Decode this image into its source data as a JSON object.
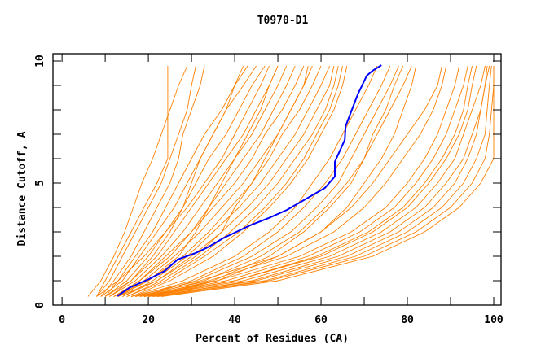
{
  "chart_data": {
    "type": "line",
    "title": "T0970-D1",
    "xlabel": "Percent of Residues (CA)",
    "ylabel": "Distance Cutoff, A",
    "xlim": [
      -2.1,
      101.7
    ],
    "ylim": [
      0,
      10.3
    ],
    "x_ticks": [
      0,
      20,
      40,
      60,
      80,
      100
    ],
    "y_ticks": [
      0,
      5,
      10
    ],
    "grid": false,
    "legend": "none",
    "colors": {
      "models": "#ff8000",
      "highlight": "#0000ff",
      "axis": "#000000"
    },
    "model_y_levels": [
      0.35,
      1,
      2,
      3,
      4,
      5,
      6,
      7,
      8,
      9,
      9.8
    ],
    "model_series_x": [
      [
        6,
        9,
        12,
        14.5,
        16.5,
        18.5,
        21,
        23,
        25,
        27,
        29
      ],
      [
        8,
        10,
        13,
        16,
        19,
        22,
        24.5,
        24.5,
        24.5,
        24.5,
        24.5
      ],
      [
        8,
        11,
        14,
        17,
        20,
        23,
        25,
        27,
        29,
        30,
        31
      ],
      [
        9,
        12,
        16,
        19,
        22,
        25,
        27,
        28,
        30,
        32,
        33
      ],
      [
        8,
        13,
        17,
        21,
        24,
        27,
        30,
        33,
        37,
        40,
        43
      ],
      [
        9,
        14,
        18,
        22,
        26,
        29,
        32,
        35,
        38,
        42,
        45
      ],
      [
        10,
        15,
        20,
        24,
        28,
        31,
        34,
        38,
        41,
        44,
        47
      ],
      [
        10,
        13,
        19,
        24,
        29,
        33,
        37,
        40,
        43,
        46,
        48
      ],
      [
        11,
        16,
        22,
        26,
        30,
        34,
        38,
        42,
        45,
        48,
        50
      ],
      [
        11,
        17,
        23,
        28,
        32,
        36,
        40,
        44,
        47,
        50,
        52
      ],
      [
        12,
        18,
        24,
        30,
        34,
        38,
        42,
        46,
        49,
        52,
        54
      ],
      [
        12,
        18,
        25,
        30,
        35,
        40,
        44,
        47,
        51,
        54,
        56
      ],
      [
        13,
        19,
        26,
        32,
        37,
        42,
        46,
        50,
        53,
        56,
        58
      ],
      [
        13,
        20,
        28,
        34,
        39,
        44,
        48,
        51,
        55,
        58,
        60
      ],
      [
        14,
        21,
        29,
        35,
        41,
        46,
        50,
        54,
        57,
        60,
        62
      ],
      [
        14,
        22,
        30,
        37,
        43,
        48,
        52,
        56,
        59,
        62,
        63
      ],
      [
        15,
        23,
        32,
        39,
        45,
        50,
        54,
        58,
        61,
        63,
        64
      ],
      [
        15,
        24,
        33,
        41,
        47,
        52,
        56,
        59,
        62,
        64,
        65
      ],
      [
        16,
        25,
        35,
        42,
        48,
        53,
        57,
        60,
        63,
        65,
        66
      ],
      [
        10,
        16,
        21,
        25,
        28,
        30,
        32,
        35,
        38,
        40,
        42
      ],
      [
        12,
        20,
        27,
        31,
        34,
        37,
        40,
        43,
        46,
        48,
        50
      ],
      [
        13,
        22,
        31,
        37,
        40,
        44,
        47,
        50,
        53,
        56,
        57
      ],
      [
        16,
        28,
        40,
        48,
        54,
        58,
        62,
        65,
        68,
        71,
        73
      ],
      [
        17,
        30,
        42,
        50,
        56,
        61,
        65,
        68,
        71,
        74,
        76
      ],
      [
        18,
        31,
        44,
        53,
        59,
        64,
        67,
        70,
        73,
        76,
        78
      ],
      [
        18,
        33,
        46,
        55,
        61,
        66,
        70,
        73,
        76,
        79,
        81
      ],
      [
        19,
        35,
        48,
        56,
        62,
        67,
        70,
        72,
        75,
        77,
        79
      ],
      [
        20,
        36,
        50,
        60,
        66,
        70,
        74,
        77,
        79,
        81,
        82
      ],
      [
        18,
        36,
        55,
        67,
        75,
        80,
        84,
        87,
        89,
        91,
        92
      ],
      [
        19,
        38,
        57,
        69,
        77,
        82,
        86,
        89,
        91,
        93,
        94
      ],
      [
        19,
        40,
        59,
        71,
        79,
        84,
        88,
        91,
        93,
        94,
        95
      ],
      [
        20,
        40,
        60,
        72,
        80,
        85,
        89,
        92,
        94,
        95,
        96
      ],
      [
        20,
        42,
        62,
        74,
        82,
        87,
        91,
        93,
        95,
        97,
        98
      ],
      [
        21,
        44,
        64,
        76,
        84,
        89,
        93,
        95,
        97,
        98,
        98.5
      ],
      [
        21,
        45,
        66,
        78,
        86,
        91,
        94,
        96,
        97,
        98,
        99
      ],
      [
        22,
        47,
        68,
        80,
        88,
        93,
        96,
        98,
        98.5,
        99,
        99.5
      ],
      [
        22,
        48,
        70,
        82,
        90,
        95,
        98,
        99,
        99.5,
        100,
        100
      ],
      [
        23,
        50,
        72,
        84,
        92,
        97,
        100,
        100,
        100,
        100,
        100
      ],
      [
        17,
        34,
        52,
        63,
        70,
        75,
        79,
        83,
        86,
        88,
        89
      ],
      [
        16,
        32,
        50,
        60,
        67,
        72,
        76,
        80,
        84,
        87,
        88
      ]
    ],
    "highlight_series": [
      [
        12.8,
        0.37
      ],
      [
        15.8,
        0.73
      ],
      [
        20.2,
        1.07
      ],
      [
        23.8,
        1.4
      ],
      [
        26.8,
        1.87
      ],
      [
        30.9,
        2.13
      ],
      [
        34.1,
        2.4
      ],
      [
        37.2,
        2.73
      ],
      [
        43.6,
        3.27
      ],
      [
        47.9,
        3.57
      ],
      [
        52.1,
        3.9
      ],
      [
        56.0,
        4.3
      ],
      [
        60.9,
        4.8
      ],
      [
        63.2,
        5.27
      ],
      [
        63.2,
        5.87
      ],
      [
        65.5,
        6.77
      ],
      [
        65.7,
        7.33
      ],
      [
        68.5,
        8.63
      ],
      [
        70.6,
        9.4
      ],
      [
        71.9,
        9.6
      ],
      [
        74.0,
        9.83
      ]
    ]
  }
}
